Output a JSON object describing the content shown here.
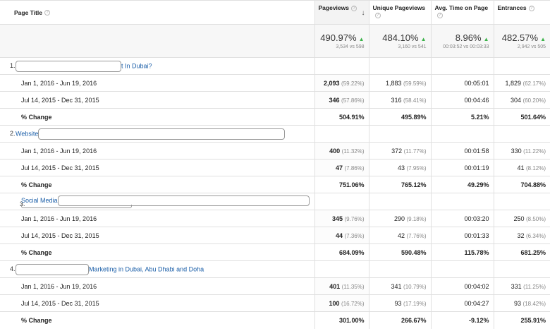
{
  "headers": {
    "page_title": "Page Title",
    "pageviews": "Pageviews",
    "unique_pageviews": "Unique Pageviews",
    "avg_time": "Avg. Time on Page",
    "entrances": "Entrances",
    "help_glyph": "?",
    "sort_glyph": "↓"
  },
  "summary": {
    "pageviews": {
      "pct": "490.97%",
      "detail": "3,534 vs 598"
    },
    "unique_pageviews": {
      "pct": "484.10%",
      "detail": "3,160 vs 541"
    },
    "avg_time": {
      "pct": "8.96%",
      "detail": "00:03:52 vs 00:03:33"
    },
    "entrances": {
      "pct": "482.57%",
      "detail": "2,942 vs 505"
    },
    "up_glyph": "▲"
  },
  "rows": [
    {
      "num": "1.",
      "title_suffix": "t In Dubai?",
      "periods": [
        {
          "label": "Jan 1, 2016 - Jun 19, 2016",
          "pv": "2,093",
          "pv_pct": "(59.22%)",
          "upv": "1,883",
          "upv_pct": "(59.59%)",
          "time": "00:05:01",
          "ent": "1,829",
          "ent_pct": "(62.17%)"
        },
        {
          "label": "Jul 14, 2015 - Dec 31, 2015",
          "pv": "346",
          "pv_pct": "(57.86%)",
          "upv": "316",
          "upv_pct": "(58.41%)",
          "time": "00:04:46",
          "ent": "304",
          "ent_pct": "(60.20%)"
        }
      ],
      "change": {
        "label": "% Change",
        "pv": "504.91%",
        "upv": "495.89%",
        "time": "5.21%",
        "ent": "501.64%"
      }
    },
    {
      "num": "2.",
      "title_prefix": "Website",
      "periods": [
        {
          "label": "Jan 1, 2016 - Jun 19, 2016",
          "pv": "400",
          "pv_pct": "(11.32%)",
          "upv": "372",
          "upv_pct": "(11.77%)",
          "time": "00:01:58",
          "ent": "330",
          "ent_pct": "(11.22%)"
        },
        {
          "label": "Jul 14, 2015 - Dec 31, 2015",
          "pv": "47",
          "pv_pct": "(7.86%)",
          "upv": "43",
          "upv_pct": "(7.95%)",
          "time": "00:01:19",
          "ent": "41",
          "ent_pct": "(8.12%)"
        }
      ],
      "change": {
        "label": "% Change",
        "pv": "751.06%",
        "upv": "765.12%",
        "time": "49.29%",
        "ent": "704.88%"
      }
    },
    {
      "num": "3.",
      "title_prefix": "Social Media",
      "periods": [
        {
          "label": "Jan 1, 2016 - Jun 19, 2016",
          "pv": "345",
          "pv_pct": "(9.76%)",
          "upv": "290",
          "upv_pct": "(9.18%)",
          "time": "00:03:20",
          "ent": "250",
          "ent_pct": "(8.50%)"
        },
        {
          "label": "Jul 14, 2015 - Dec 31, 2015",
          "pv": "44",
          "pv_pct": "(7.36%)",
          "upv": "42",
          "upv_pct": "(7.76%)",
          "time": "00:01:33",
          "ent": "32",
          "ent_pct": "(6.34%)"
        }
      ],
      "change": {
        "label": "% Change",
        "pv": "684.09%",
        "upv": "590.48%",
        "time": "115.78%",
        "ent": "681.25%"
      }
    },
    {
      "num": "4.",
      "title_suffix": "Marketing in Dubai, Abu Dhabi and Doha",
      "periods": [
        {
          "label": "Jan 1, 2016 - Jun 19, 2016",
          "pv": "401",
          "pv_pct": "(11.35%)",
          "upv": "341",
          "upv_pct": "(10.79%)",
          "time": "00:04:02",
          "ent": "331",
          "ent_pct": "(11.25%)"
        },
        {
          "label": "Jul 14, 2015 - Dec 31, 2015",
          "pv": "100",
          "pv_pct": "(16.72%)",
          "upv": "93",
          "upv_pct": "(17.19%)",
          "time": "00:04:27",
          "ent": "93",
          "ent_pct": "(18.42%)"
        }
      ],
      "change": {
        "label": "% Change",
        "pv": "301.00%",
        "upv": "266.67%",
        "time": "-9.12%",
        "ent": "255.91%"
      }
    }
  ]
}
